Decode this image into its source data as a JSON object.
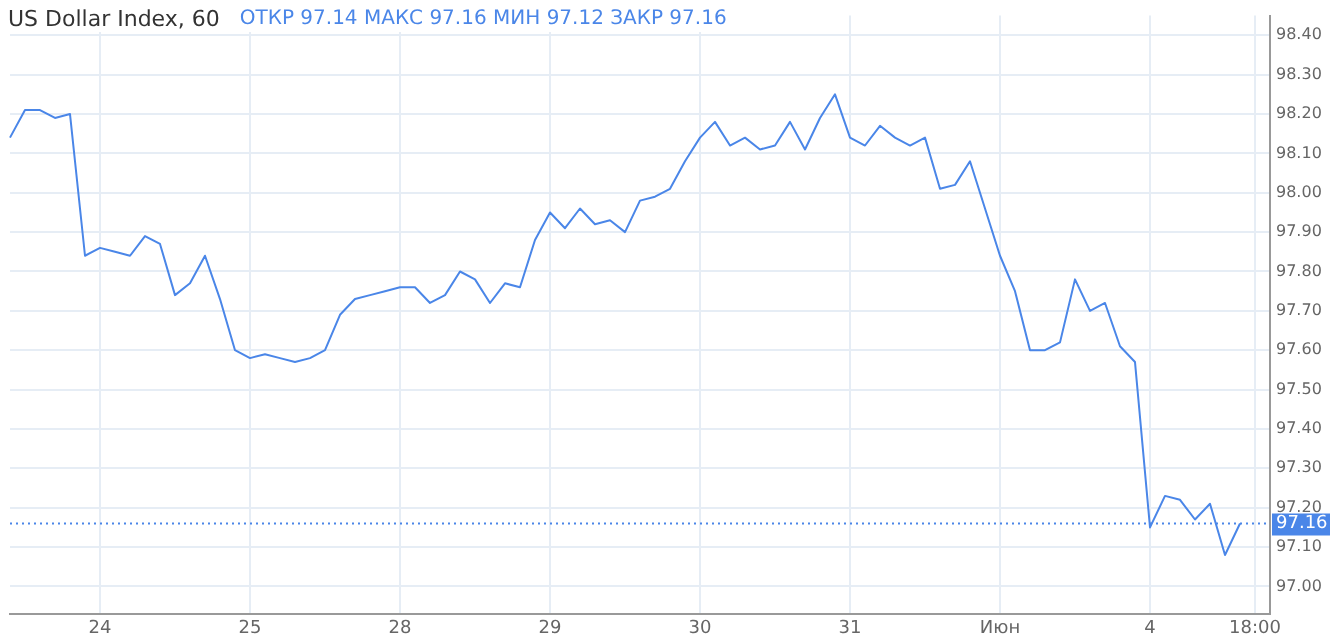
{
  "chart_data": {
    "type": "line",
    "title": "US Dollar Index, 60",
    "subtitle": "ОТКР 97.14  МАКС 97.16  МИН 97.12  ЗАКР 97.16",
    "categories": [
      null,
      null,
      null,
      null,
      null,
      null,
      "24",
      null,
      null,
      null,
      null,
      null,
      null,
      null,
      null,
      null,
      "25",
      null,
      null,
      null,
      null,
      null,
      null,
      null,
      null,
      null,
      "28",
      null,
      null,
      null,
      null,
      null,
      null,
      null,
      null,
      null,
      "29",
      null,
      null,
      null,
      null,
      null,
      null,
      null,
      null,
      null,
      "30",
      null,
      null,
      null,
      null,
      null,
      null,
      null,
      null,
      null,
      "31",
      null,
      null,
      null,
      null,
      null,
      null,
      null,
      null,
      null,
      "Июн",
      null,
      null,
      null,
      null,
      null,
      null,
      null,
      null,
      null,
      "4",
      null,
      null,
      null,
      null,
      null,
      null,
      "18:00",
      null
    ],
    "series": [
      {
        "color": "#4a86e8",
        "values": [
          98.14,
          98.21,
          98.21,
          98.19,
          98.2,
          97.84,
          97.86,
          97.85,
          97.84,
          97.89,
          97.87,
          97.74,
          97.77,
          97.84,
          97.73,
          97.6,
          97.58,
          97.59,
          97.58,
          97.57,
          97.58,
          97.6,
          97.69,
          97.73,
          97.74,
          97.75,
          97.76,
          97.76,
          97.72,
          97.74,
          97.8,
          97.78,
          97.72,
          97.77,
          97.76,
          97.88,
          97.95,
          97.91,
          97.96,
          97.92,
          97.93,
          97.9,
          97.98,
          97.99,
          98.01,
          98.08,
          98.14,
          98.18,
          98.12,
          98.14,
          98.11,
          98.12,
          98.18,
          98.11,
          98.19,
          98.25,
          98.14,
          98.12,
          98.17,
          98.14,
          98.12,
          98.14,
          98.01,
          98.02,
          98.08,
          97.96,
          97.84,
          97.75,
          97.6,
          97.6,
          97.62,
          97.78,
          97.7,
          97.72,
          97.61,
          97.57,
          97.15,
          97.23,
          97.22,
          97.17,
          97.21,
          97.08,
          97.16,
          null,
          null
        ]
      }
    ],
    "ylim": [
      96.93,
      98.45
    ],
    "yticks": [
      {
        "value": 97.0,
        "label": "97.00"
      },
      {
        "value": 97.1,
        "label": "97.10"
      },
      {
        "value": 97.2,
        "label": "97.20"
      },
      {
        "value": 97.3,
        "label": "97.30"
      },
      {
        "value": 97.4,
        "label": "97.40"
      },
      {
        "value": 97.5,
        "label": "97.50"
      },
      {
        "value": 97.6,
        "label": "97.60"
      },
      {
        "value": 97.7,
        "label": "97.70"
      },
      {
        "value": 97.8,
        "label": "97.80"
      },
      {
        "value": 97.9,
        "label": "97.90"
      },
      {
        "value": 98.0,
        "label": "98.00"
      },
      {
        "value": 98.1,
        "label": "98.10"
      },
      {
        "value": 98.2,
        "label": "98.20"
      },
      {
        "value": 98.3,
        "label": "98.30"
      },
      {
        "value": 98.4,
        "label": "98.40"
      }
    ],
    "ref_lines": [
      {
        "axis": "y",
        "value": 97.16,
        "label": "97.16",
        "color": "#4a86e8",
        "line_style": "dotted"
      }
    ],
    "grid": true,
    "marker": "none",
    "line_style": "solid"
  }
}
